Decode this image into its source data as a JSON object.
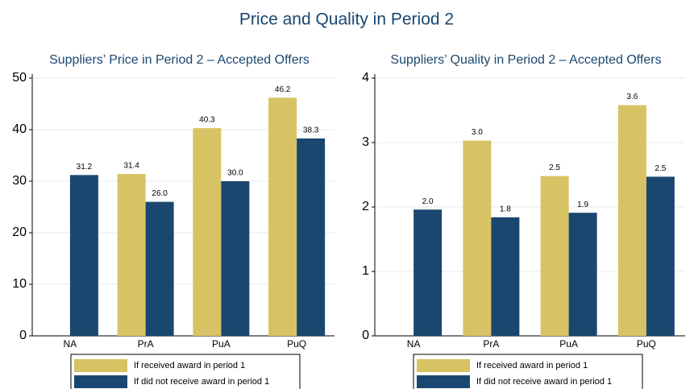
{
  "title": "Price and Quality in Period 2",
  "chart_data": [
    {
      "type": "bar",
      "title": "Suppliers’ Price in Period 2 – Accepted Offers",
      "categories": [
        "NA",
        "PrA",
        "PuA",
        "PuQ"
      ],
      "series": [
        {
          "name": "If received award in period 1",
          "color": "#d8c364",
          "values": [
            null,
            31.4,
            40.3,
            46.2
          ],
          "value_labels": [
            null,
            "31.4",
            "40.3",
            "46.2"
          ]
        },
        {
          "name": "If did not receive award in period 1",
          "color": "#1a476f",
          "values": [
            31.2,
            26.0,
            30.0,
            38.3
          ],
          "value_labels": [
            "31.2",
            "26.0",
            "30.0",
            "38.3"
          ]
        }
      ],
      "ylim": [
        0,
        50
      ],
      "yticks": [
        0,
        10,
        20,
        30,
        40,
        50
      ],
      "grid": true
    },
    {
      "type": "bar",
      "title": "Suppliers’ Quality in Period 2 – Accepted Offers",
      "categories": [
        "NA",
        "PrA",
        "PuA",
        "PuQ"
      ],
      "series": [
        {
          "name": "If received award in period 1",
          "color": "#d8c364",
          "values": [
            null,
            3.03,
            2.48,
            3.58
          ],
          "value_labels": [
            null,
            "3.0",
            "2.5",
            "3.6"
          ]
        },
        {
          "name": "If did not receive award in period 1",
          "color": "#1a476f",
          "values": [
            1.96,
            1.84,
            1.91,
            2.47
          ],
          "value_labels": [
            "2.0",
            "1.8",
            "1.9",
            "2.5"
          ]
        }
      ],
      "ylim": [
        0,
        4
      ],
      "yticks": [
        0,
        1,
        2,
        3,
        4
      ],
      "grid": true
    }
  ]
}
